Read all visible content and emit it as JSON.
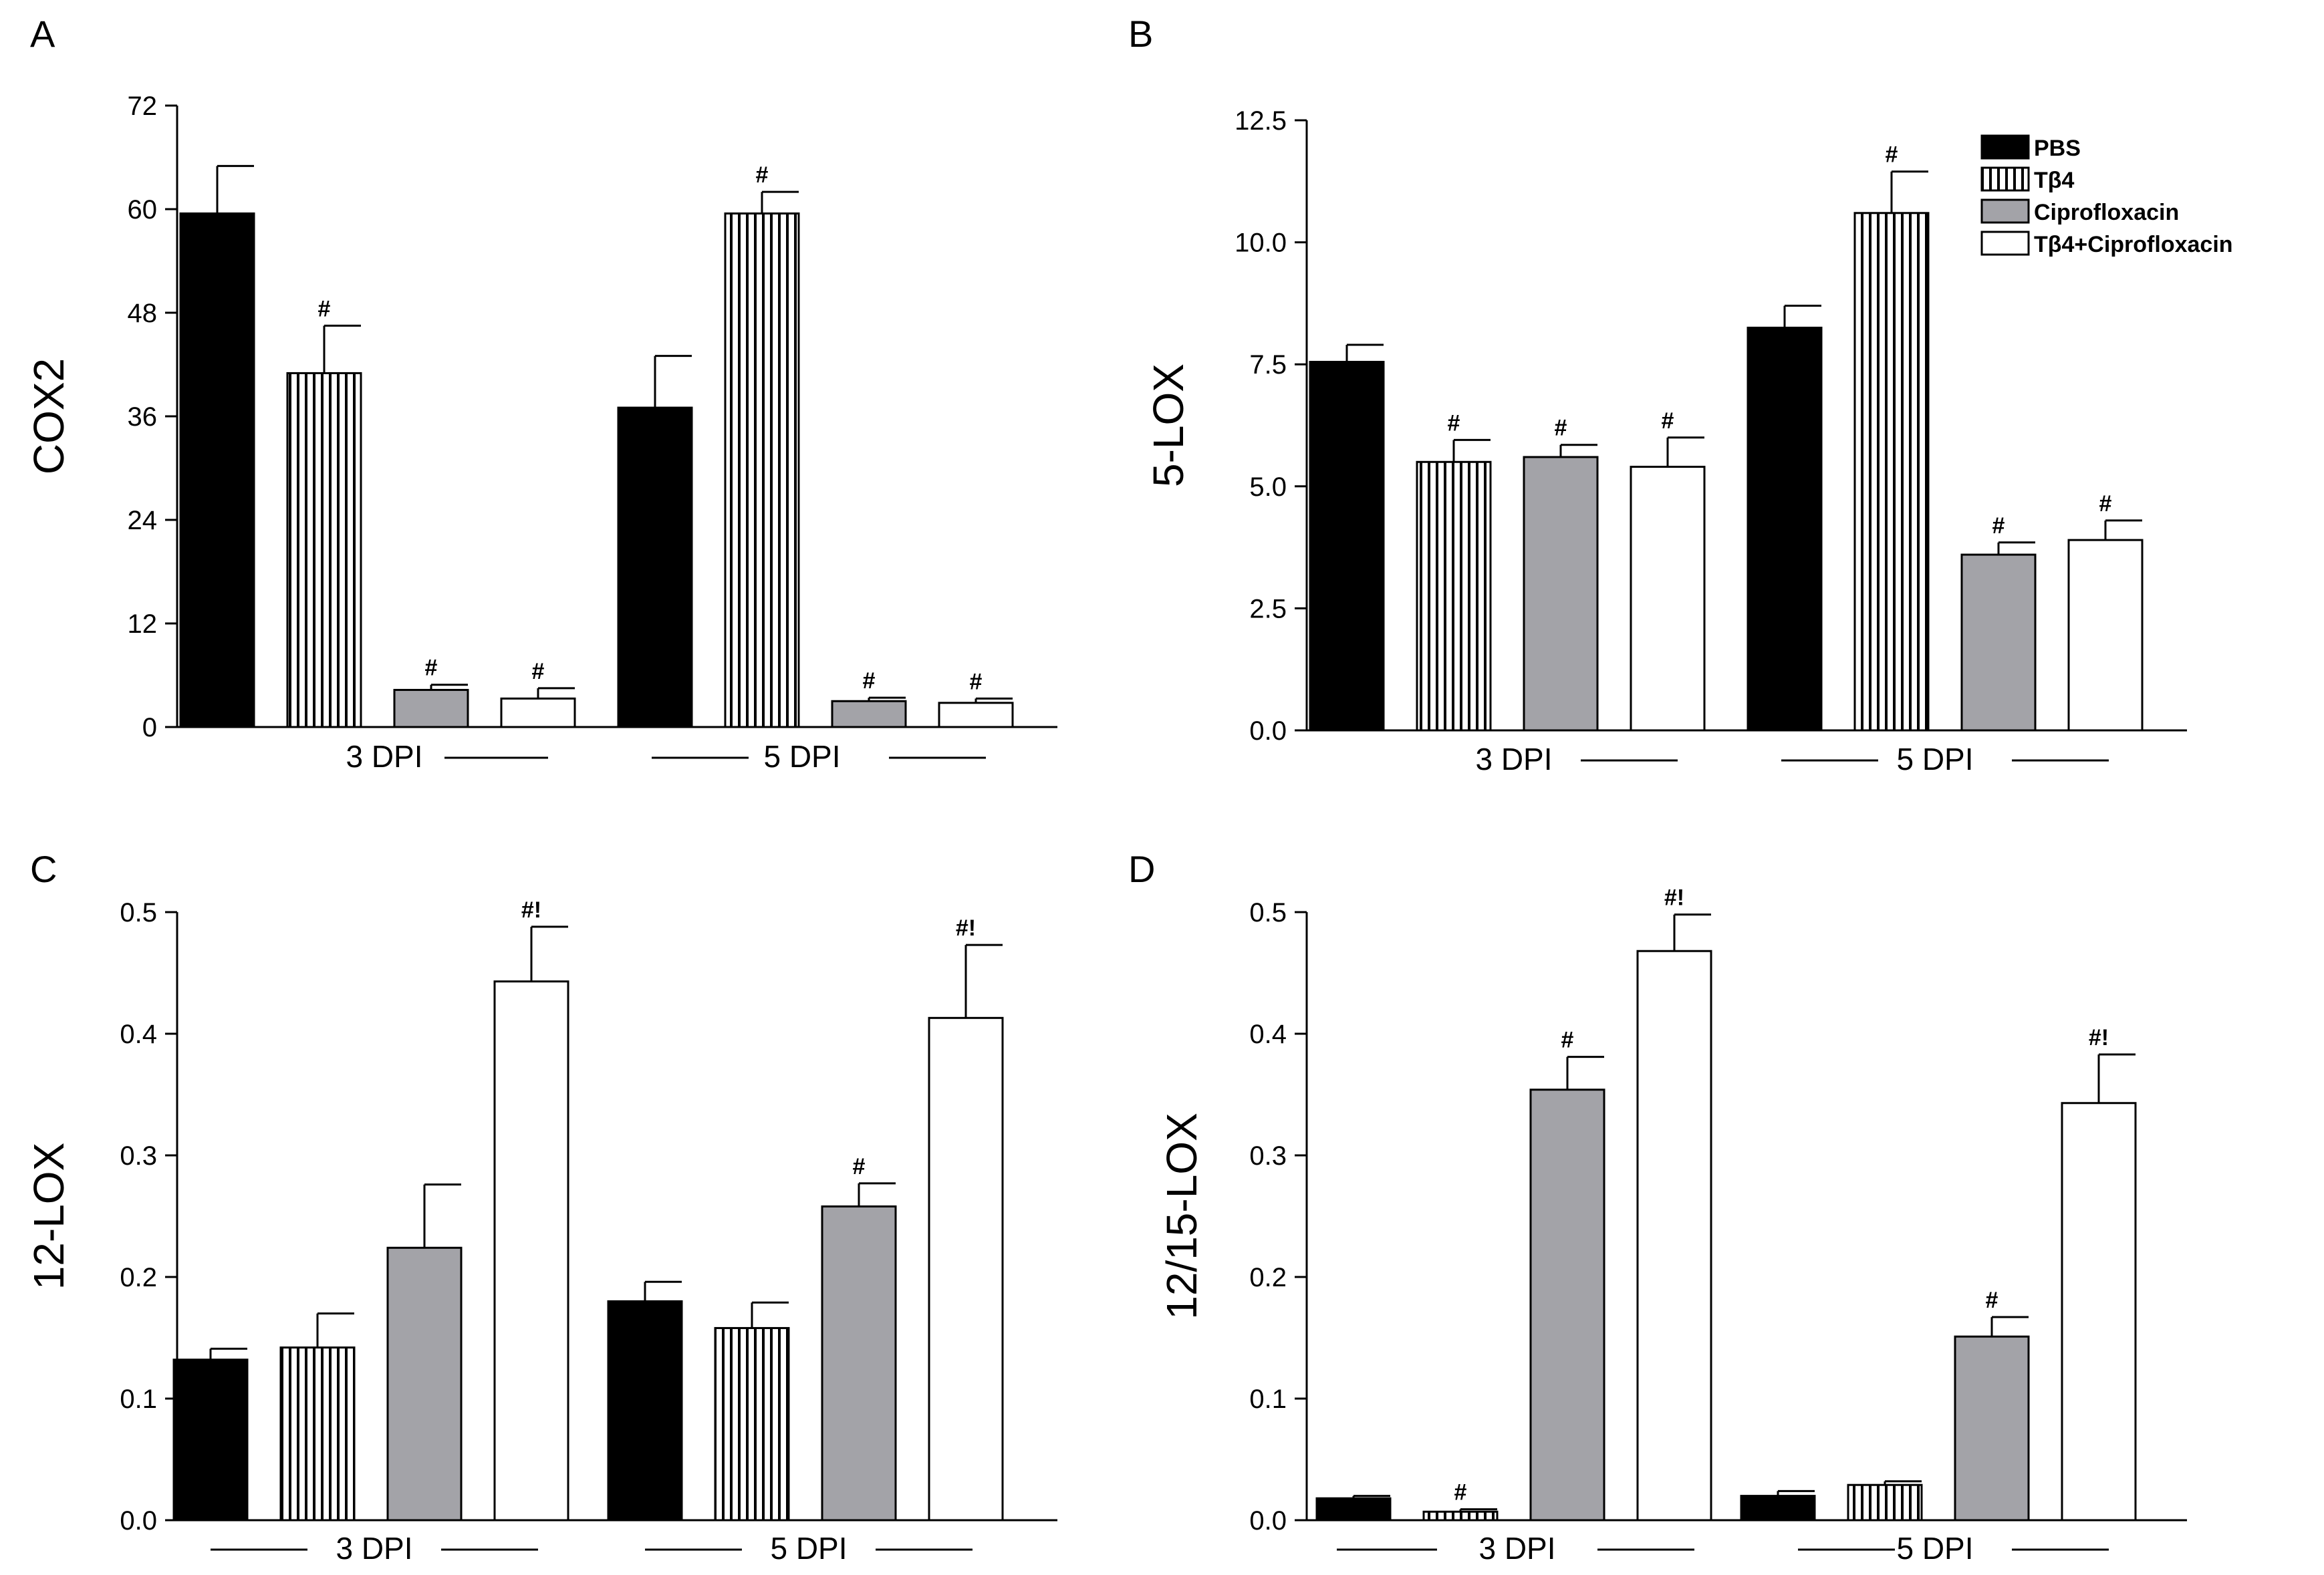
{
  "colors": {
    "PBS": "#000000",
    "Tβ4": "#ffffff",
    "Ciprofloxacin": "#a3a3a8",
    "Tβ4+Ciprofloxacin": "#ffffff",
    "stroke": "#000000"
  },
  "legend": {
    "entries": [
      "PBS",
      "Tβ4",
      "Ciprofloxacin",
      "Tβ4+Ciprofloxacin"
    ],
    "patterns": [
      "solid",
      "vstripe",
      "solid",
      "solid"
    ],
    "placement": "top-right of panel B"
  },
  "chart_data": [
    {
      "panel": "A",
      "type": "bar",
      "ylabel": "COX2",
      "ylim": [
        0,
        72
      ],
      "yticks": [
        0,
        12,
        24,
        36,
        48,
        60,
        72
      ],
      "ytick_labels": [
        "0",
        "12",
        "24",
        "36",
        "48",
        "60",
        "72"
      ],
      "categories": [
        "3 DPI",
        "5 DPI"
      ],
      "series": [
        {
          "name": "PBS",
          "values": [
            59.5,
            37.0
          ],
          "errors": [
            5.5,
            6.0
          ],
          "annotations": [
            "",
            ""
          ]
        },
        {
          "name": "Tβ4",
          "values": [
            41.0,
            59.5
          ],
          "errors": [
            5.5,
            2.5
          ],
          "annotations": [
            "#",
            "#"
          ]
        },
        {
          "name": "Ciprofloxacin",
          "values": [
            4.3,
            3.0
          ],
          "errors": [
            0.6,
            0.4
          ],
          "annotations": [
            "#",
            "#"
          ]
        },
        {
          "name": "Tβ4+Ciprofloxacin",
          "values": [
            3.3,
            2.8
          ],
          "errors": [
            1.2,
            0.5
          ],
          "annotations": [
            "#",
            "#"
          ]
        }
      ]
    },
    {
      "panel": "B",
      "type": "bar",
      "ylabel": "5-LOX",
      "ylim": [
        0,
        12.5
      ],
      "yticks": [
        0,
        2.5,
        5.0,
        7.5,
        10.0,
        12.5
      ],
      "ytick_labels": [
        "0.0",
        "2.5",
        "5.0",
        "7.5",
        "10.0",
        "12.5"
      ],
      "categories": [
        "3 DPI",
        "5 DPI"
      ],
      "series": [
        {
          "name": "PBS",
          "values": [
            7.55,
            8.25
          ],
          "errors": [
            0.35,
            0.45
          ],
          "annotations": [
            "",
            ""
          ]
        },
        {
          "name": "Tβ4",
          "values": [
            5.5,
            10.6
          ],
          "errors": [
            0.45,
            0.85
          ],
          "annotations": [
            "#",
            "#"
          ]
        },
        {
          "name": "Ciprofloxacin",
          "values": [
            5.6,
            3.6
          ],
          "errors": [
            0.25,
            0.25
          ],
          "annotations": [
            "#",
            "#"
          ]
        },
        {
          "name": "Tβ4+Ciprofloxacin",
          "values": [
            5.4,
            3.9
          ],
          "errors": [
            0.6,
            0.4
          ],
          "annotations": [
            "#",
            "#"
          ]
        }
      ]
    },
    {
      "panel": "C",
      "type": "bar",
      "ylabel": "12-LOX",
      "ylim": [
        0,
        0.5
      ],
      "yticks": [
        0,
        0.1,
        0.2,
        0.3,
        0.4,
        0.5
      ],
      "ytick_labels": [
        "0.0",
        "0.1",
        "0.2",
        "0.3",
        "0.4",
        "0.5"
      ],
      "categories": [
        "3 DPI",
        "5 DPI"
      ],
      "series": [
        {
          "name": "PBS",
          "values": [
            0.132,
            0.18
          ],
          "errors": [
            0.009,
            0.016
          ],
          "annotations": [
            "",
            ""
          ]
        },
        {
          "name": "Tβ4",
          "values": [
            0.142,
            0.158
          ],
          "errors": [
            0.028,
            0.021
          ],
          "annotations": [
            "",
            ""
          ]
        },
        {
          "name": "Ciprofloxacin",
          "values": [
            0.224,
            0.258
          ],
          "errors": [
            0.052,
            0.019
          ],
          "annotations": [
            "",
            "#"
          ]
        },
        {
          "name": "Tβ4+Ciprofloxacin",
          "values": [
            0.443,
            0.413
          ],
          "errors": [
            0.045,
            0.06
          ],
          "annotations": [
            "#!",
            "#!"
          ]
        }
      ]
    },
    {
      "panel": "D",
      "type": "bar",
      "ylabel": "12/15-LOX",
      "ylim": [
        0,
        0.5
      ],
      "yticks": [
        0,
        0.1,
        0.2,
        0.3,
        0.4,
        0.5
      ],
      "ytick_labels": [
        "0.0",
        "0.1",
        "0.2",
        "0.3",
        "0.4",
        "0.5"
      ],
      "categories": [
        "3 DPI",
        "5 DPI"
      ],
      "series": [
        {
          "name": "PBS",
          "values": [
            0.018,
            0.02
          ],
          "errors": [
            0.002,
            0.004
          ],
          "annotations": [
            "",
            ""
          ]
        },
        {
          "name": "Tβ4",
          "values": [
            0.007,
            0.029
          ],
          "errors": [
            0.002,
            0.003
          ],
          "annotations": [
            "#",
            ""
          ]
        },
        {
          "name": "Ciprofloxacin",
          "values": [
            0.354,
            0.151
          ],
          "errors": [
            0.027,
            0.016
          ],
          "annotations": [
            "#",
            "#"
          ]
        },
        {
          "name": "Tβ4+Ciprofloxacin",
          "values": [
            0.468,
            0.343
          ],
          "errors": [
            0.03,
            0.04
          ],
          "annotations": [
            "#!",
            "#!"
          ]
        }
      ]
    }
  ]
}
